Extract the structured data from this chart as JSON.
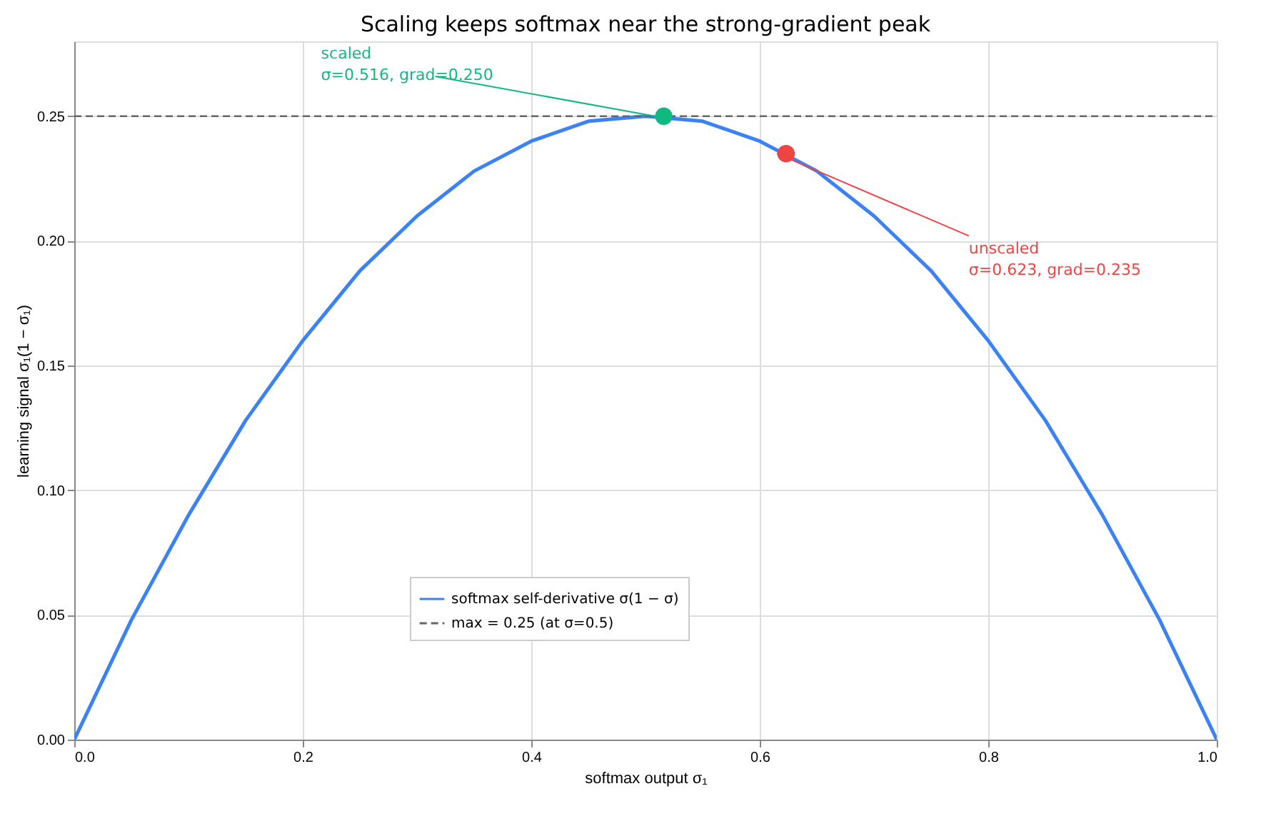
{
  "chart_data": {
    "type": "line",
    "title": "Scaling keeps softmax near the strong-gradient peak",
    "xlabel": "softmax output σ₁",
    "ylabel": "learning signal  σ₁(1 − σ₁)",
    "x": [
      0,
      0.05,
      0.1,
      0.15,
      0.2,
      0.25,
      0.3,
      0.35,
      0.4,
      0.45,
      0.5,
      0.55,
      0.6,
      0.65,
      0.7,
      0.75,
      0.8,
      0.85,
      0.9,
      0.95,
      1.0
    ],
    "series": [
      {
        "name": "softmax self-derivative σ(1 − σ)",
        "color": "#3b82f6",
        "values": [
          0,
          0.048,
          0.09,
          0.128,
          0.16,
          0.188,
          0.21,
          0.228,
          0.24,
          0.248,
          0.25,
          0.248,
          0.24,
          0.228,
          0.21,
          0.188,
          0.16,
          0.128,
          0.09,
          0.048,
          0
        ]
      },
      {
        "type": "scatter",
        "color": "#10b981",
        "x": [
          0.516
        ],
        "values": [
          0.25
        ],
        "marker": "circle"
      },
      {
        "type": "scatter",
        "color": "#ef4444",
        "x": [
          0.623
        ],
        "values": [
          0.235
        ],
        "marker": "circle"
      }
    ],
    "annotations": [
      {
        "text": "scaled\nσ=0.516, grad=0.250",
        "x": 0.516,
        "y": 0.25
      },
      {
        "text": "unscaled\nσ=0.623, grad=0.235",
        "x": 0.623,
        "y": 0.235
      }
    ],
    "ref_lines": [
      {
        "axis": "y",
        "value": 0.25,
        "label": "max = 0.25 (at σ=0.5)",
        "color": "#666666",
        "line_style": "dashed"
      }
    ],
    "xlim": [
      0,
      1.0
    ],
    "ylim": [
      0,
      0.28
    ],
    "xticks": [
      {
        "value": 0,
        "label": "0.0"
      },
      0.2,
      0.4,
      0.6,
      0.8,
      {
        "value": 1.0,
        "label": "1.0"
      }
    ],
    "yticks": [
      {
        "value": 0,
        "label": "0.00"
      },
      0.05,
      {
        "value": 0.1,
        "label": "0.10"
      },
      0.15,
      {
        "value": 0.2,
        "label": "0.20"
      },
      0.25
    ],
    "grid": true,
    "legend": "bottom",
    "line_style": "solid"
  }
}
